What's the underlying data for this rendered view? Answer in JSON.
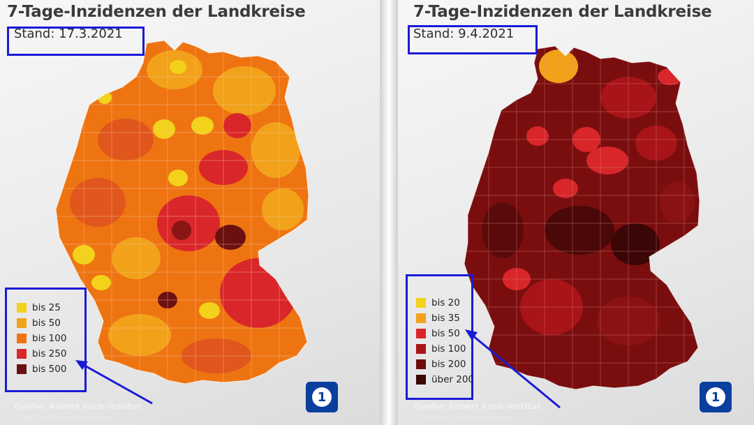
{
  "left": {
    "title": "7-Tage-Inzidenzen der Landkreise",
    "stand": "Stand: 17.3.2021",
    "legend": [
      {
        "label": "bis 25",
        "color": "#f2d21a"
      },
      {
        "label": "bis 50",
        "color": "#f2a21a"
      },
      {
        "label": "bis 100",
        "color": "#ee7412"
      },
      {
        "label": "bis 250",
        "color": "#d9262a"
      },
      {
        "label": "bis 500",
        "color": "#6a1010"
      }
    ],
    "source": "Quelle: Robert Koch-Institut",
    "copyright": "© MapTiler / © openstreetmap.org",
    "logo": "1"
  },
  "right": {
    "title": "7-Tage-Inzidenzen der Landkreise",
    "stand": "Stand: 9.4.2021",
    "legend": [
      {
        "label": "bis 20",
        "color": "#f2d21a"
      },
      {
        "label": "bis 35",
        "color": "#f2a21a"
      },
      {
        "label": "bis 50",
        "color": "#d9262a"
      },
      {
        "label": "bis 100",
        "color": "#a81418"
      },
      {
        "label": "bis 200",
        "color": "#6e0c0c"
      },
      {
        "label": "über 200",
        "color": "#3a0606"
      }
    ],
    "source": "Quelle: Robert Koch-Institut",
    "copyright": "© MapTiler / © openstreetmap.org",
    "logo": "1"
  },
  "colors": {
    "highlight_box": "#1a1ad6",
    "left_map_base": "#ee7412",
    "right_map_base": "#7a0e0e"
  }
}
